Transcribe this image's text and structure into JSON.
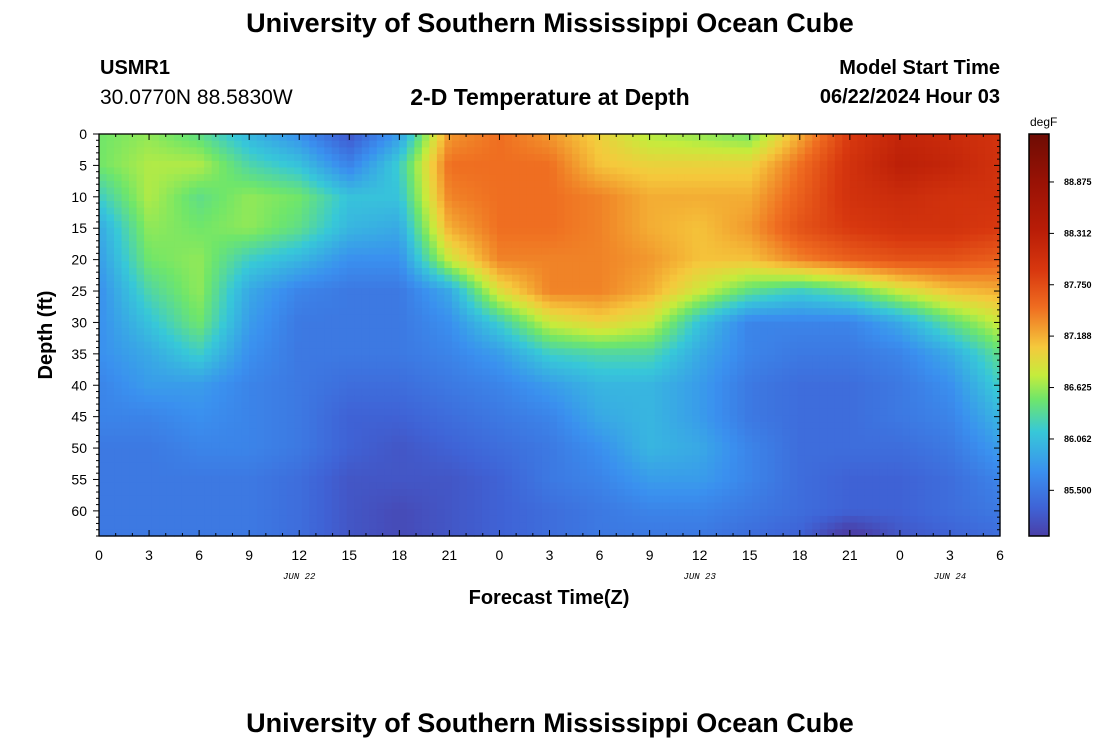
{
  "page": {
    "title": "University of Southern Mississippi Ocean Cube",
    "footer_title": "University of Southern Mississippi Ocean Cube"
  },
  "header": {
    "station": "USMR1",
    "coords": "30.0770N  88.5830W",
    "center_title": "2-D Temperature at Depth",
    "start_label": "Model Start Time",
    "start_value": "06/22/2024 Hour 03"
  },
  "chart_data": {
    "type": "heatmap",
    "title": "2-D Temperature at Depth",
    "xlabel": "Forecast Time(Z)",
    "ylabel": "Depth (ft)",
    "x_hours_range": [
      0,
      54
    ],
    "x_tick_hours": [
      0,
      3,
      6,
      9,
      12,
      15,
      18,
      21,
      24,
      27,
      30,
      33,
      36,
      39,
      42,
      45,
      48,
      51,
      54
    ],
    "x_tick_labels": [
      "0",
      "3",
      "6",
      "9",
      "12",
      "15",
      "18",
      "21",
      "0",
      "3",
      "6",
      "9",
      "12",
      "15",
      "18",
      "21",
      "0",
      "3",
      "6"
    ],
    "date_labels": [
      {
        "hour": 12,
        "text": "JUN 22"
      },
      {
        "hour": 36,
        "text": "JUN 23"
      },
      {
        "hour": 51,
        "text": "JUN 24"
      }
    ],
    "y_depth_range": [
      0,
      64
    ],
    "y_tick_values": [
      0,
      5,
      10,
      15,
      20,
      25,
      30,
      35,
      40,
      45,
      50,
      55,
      60
    ],
    "y_tick_labels": [
      "0",
      "5",
      "10",
      "15",
      "20",
      "25",
      "30",
      "35",
      "40",
      "45",
      "50",
      "55",
      "60"
    ],
    "colorbar": {
      "unit": "degF",
      "range": [
        85.0,
        89.4
      ],
      "tick_values": [
        85.5,
        86.062,
        86.625,
        87.188,
        87.75,
        88.312,
        88.875
      ],
      "tick_labels": [
        "85.500",
        "86.062",
        "86.625",
        "87.188",
        "87.750",
        "88.312",
        "88.875"
      ]
    },
    "grid_hours": [
      0,
      3,
      6,
      9,
      12,
      15,
      18,
      21,
      24,
      27,
      30,
      33,
      36,
      39,
      42,
      45,
      48,
      51,
      54
    ],
    "grid_depths": [
      0,
      5,
      10,
      15,
      20,
      25,
      30,
      35,
      40,
      45,
      50,
      55,
      60,
      64
    ],
    "values_degF": [
      [
        86.5,
        86.6,
        86.4,
        86.0,
        85.7,
        85.2,
        85.8,
        87.3,
        87.5,
        87.3,
        87.0,
        86.7,
        86.6,
        86.5,
        87.2,
        87.9,
        88.2,
        88.1,
        88.0
      ],
      [
        86.5,
        86.7,
        86.7,
        86.3,
        86.1,
        85.6,
        86.2,
        87.5,
        87.5,
        87.5,
        87.1,
        87.0,
        87.0,
        87.0,
        87.5,
        88.0,
        88.3,
        88.2,
        88.0
      ],
      [
        86.2,
        86.7,
        86.4,
        86.6,
        86.5,
        86.1,
        86.1,
        87.4,
        87.5,
        87.5,
        87.4,
        87.2,
        87.2,
        87.2,
        87.6,
        88.0,
        88.1,
        88.0,
        88.0
      ],
      [
        85.9,
        86.6,
        86.5,
        86.6,
        86.4,
        86.0,
        85.9,
        87.2,
        87.5,
        87.5,
        87.4,
        87.2,
        87.1,
        87.3,
        87.7,
        87.9,
        88.0,
        88.0,
        87.9
      ],
      [
        85.8,
        86.5,
        86.6,
        86.2,
        86.0,
        85.7,
        85.7,
        86.8,
        87.4,
        87.4,
        87.4,
        87.3,
        87.1,
        87.1,
        87.4,
        87.6,
        87.7,
        87.7,
        87.6
      ],
      [
        85.7,
        86.3,
        86.6,
        85.9,
        85.6,
        85.5,
        85.5,
        85.9,
        86.9,
        87.4,
        87.4,
        87.2,
        86.8,
        86.4,
        86.2,
        86.4,
        86.8,
        87.1,
        87.2
      ],
      [
        85.7,
        86.1,
        86.5,
        85.8,
        85.5,
        85.5,
        85.5,
        85.7,
        86.2,
        86.8,
        87.0,
        86.8,
        86.1,
        85.6,
        85.6,
        85.6,
        85.9,
        86.4,
        86.8
      ],
      [
        85.7,
        85.9,
        86.2,
        85.7,
        85.5,
        85.5,
        85.5,
        85.6,
        85.8,
        86.2,
        86.3,
        86.3,
        85.9,
        85.6,
        85.5,
        85.5,
        85.6,
        85.9,
        86.4
      ],
      [
        85.6,
        85.8,
        85.8,
        85.6,
        85.5,
        85.4,
        85.4,
        85.5,
        85.6,
        85.8,
        86.0,
        86.0,
        85.8,
        85.5,
        85.4,
        85.4,
        85.5,
        85.7,
        86.2
      ],
      [
        85.6,
        85.6,
        85.7,
        85.6,
        85.5,
        85.3,
        85.3,
        85.4,
        85.5,
        85.6,
        85.9,
        86.0,
        85.8,
        85.5,
        85.4,
        85.4,
        85.5,
        85.6,
        86.0
      ],
      [
        85.5,
        85.5,
        85.6,
        85.6,
        85.5,
        85.3,
        85.2,
        85.3,
        85.4,
        85.5,
        85.7,
        86.0,
        85.9,
        85.6,
        85.4,
        85.4,
        85.4,
        85.5,
        85.8
      ],
      [
        85.5,
        85.5,
        85.5,
        85.5,
        85.4,
        85.2,
        85.2,
        85.2,
        85.3,
        85.5,
        85.6,
        85.8,
        85.8,
        85.6,
        85.4,
        85.3,
        85.3,
        85.4,
        85.6
      ],
      [
        85.5,
        85.5,
        85.5,
        85.5,
        85.4,
        85.2,
        85.1,
        85.2,
        85.3,
        85.4,
        85.5,
        85.6,
        85.6,
        85.5,
        85.4,
        85.3,
        85.3,
        85.4,
        85.5
      ],
      [
        85.5,
        85.5,
        85.5,
        85.5,
        85.4,
        85.2,
        85.1,
        85.2,
        85.3,
        85.4,
        85.5,
        85.5,
        85.5,
        85.4,
        85.3,
        84.9,
        85.2,
        85.3,
        85.4
      ]
    ]
  }
}
